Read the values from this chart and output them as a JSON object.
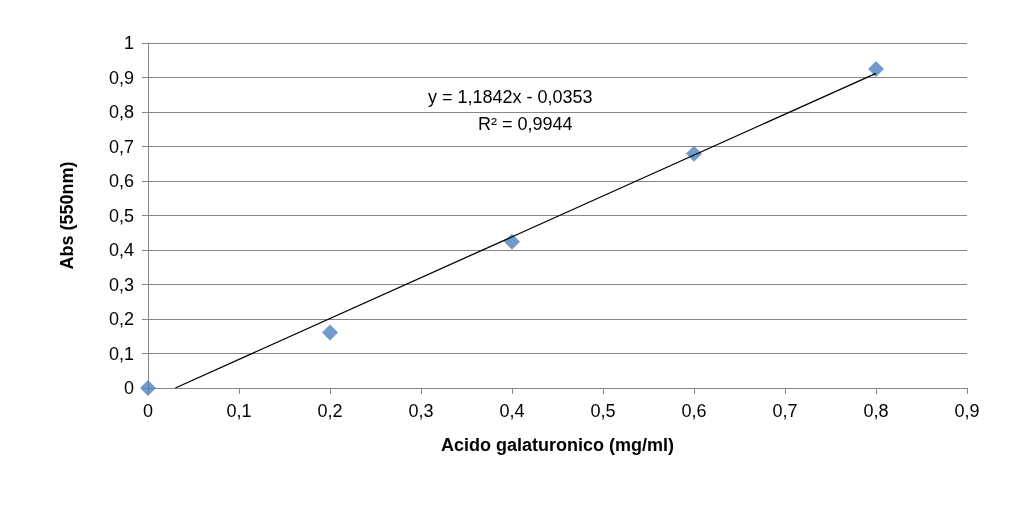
{
  "chart_data": {
    "type": "scatter",
    "xlabel": "Acido galaturonico (mg/ml)",
    "ylabel": "Abs (550nm)",
    "xlim": [
      0,
      0.9
    ],
    "ylim": [
      0,
      1
    ],
    "xticks": [
      0,
      {
        "value": 0.1,
        "label": "0,1"
      },
      {
        "value": 0.2,
        "label": "0,2"
      },
      {
        "value": 0.3,
        "label": "0,3"
      },
      {
        "value": 0.4,
        "label": "0,4"
      },
      {
        "value": 0.5,
        "label": "0,5"
      },
      {
        "value": 0.6,
        "label": "0,6"
      },
      {
        "value": 0.7,
        "label": "0,7"
      },
      {
        "value": 0.8,
        "label": "0,8"
      },
      {
        "value": 0.9,
        "label": "0,9"
      }
    ],
    "yticks": [
      0,
      {
        "value": 0.1,
        "label": "0,1"
      },
      {
        "value": 0.2,
        "label": "0,2"
      },
      {
        "value": 0.3,
        "label": "0,3"
      },
      {
        "value": 0.4,
        "label": "0,4"
      },
      {
        "value": 0.5,
        "label": "0,5"
      },
      {
        "value": 0.6,
        "label": "0,6"
      },
      {
        "value": 0.7,
        "label": "0,7"
      },
      {
        "value": 0.8,
        "label": "0,8"
      },
      {
        "value": 0.9,
        "label": "0,9"
      },
      1
    ],
    "grid": "y",
    "marker": "diamond",
    "series": [
      {
        "color": "#4f81bd",
        "x": [
          0,
          0.2,
          0.4,
          0.6,
          0.8
        ],
        "values": [
          0,
          0.161,
          0.424,
          0.679,
          0.925
        ]
      },
      {
        "type": "line",
        "color": "#000000",
        "marker": "none",
        "x": [
          0.03,
          0.8
        ],
        "values": [
          0,
          0.912
        ]
      }
    ],
    "annotations": [
      "y = 1,1842x - 0,0353",
      "R² = 0,9944"
    ]
  }
}
